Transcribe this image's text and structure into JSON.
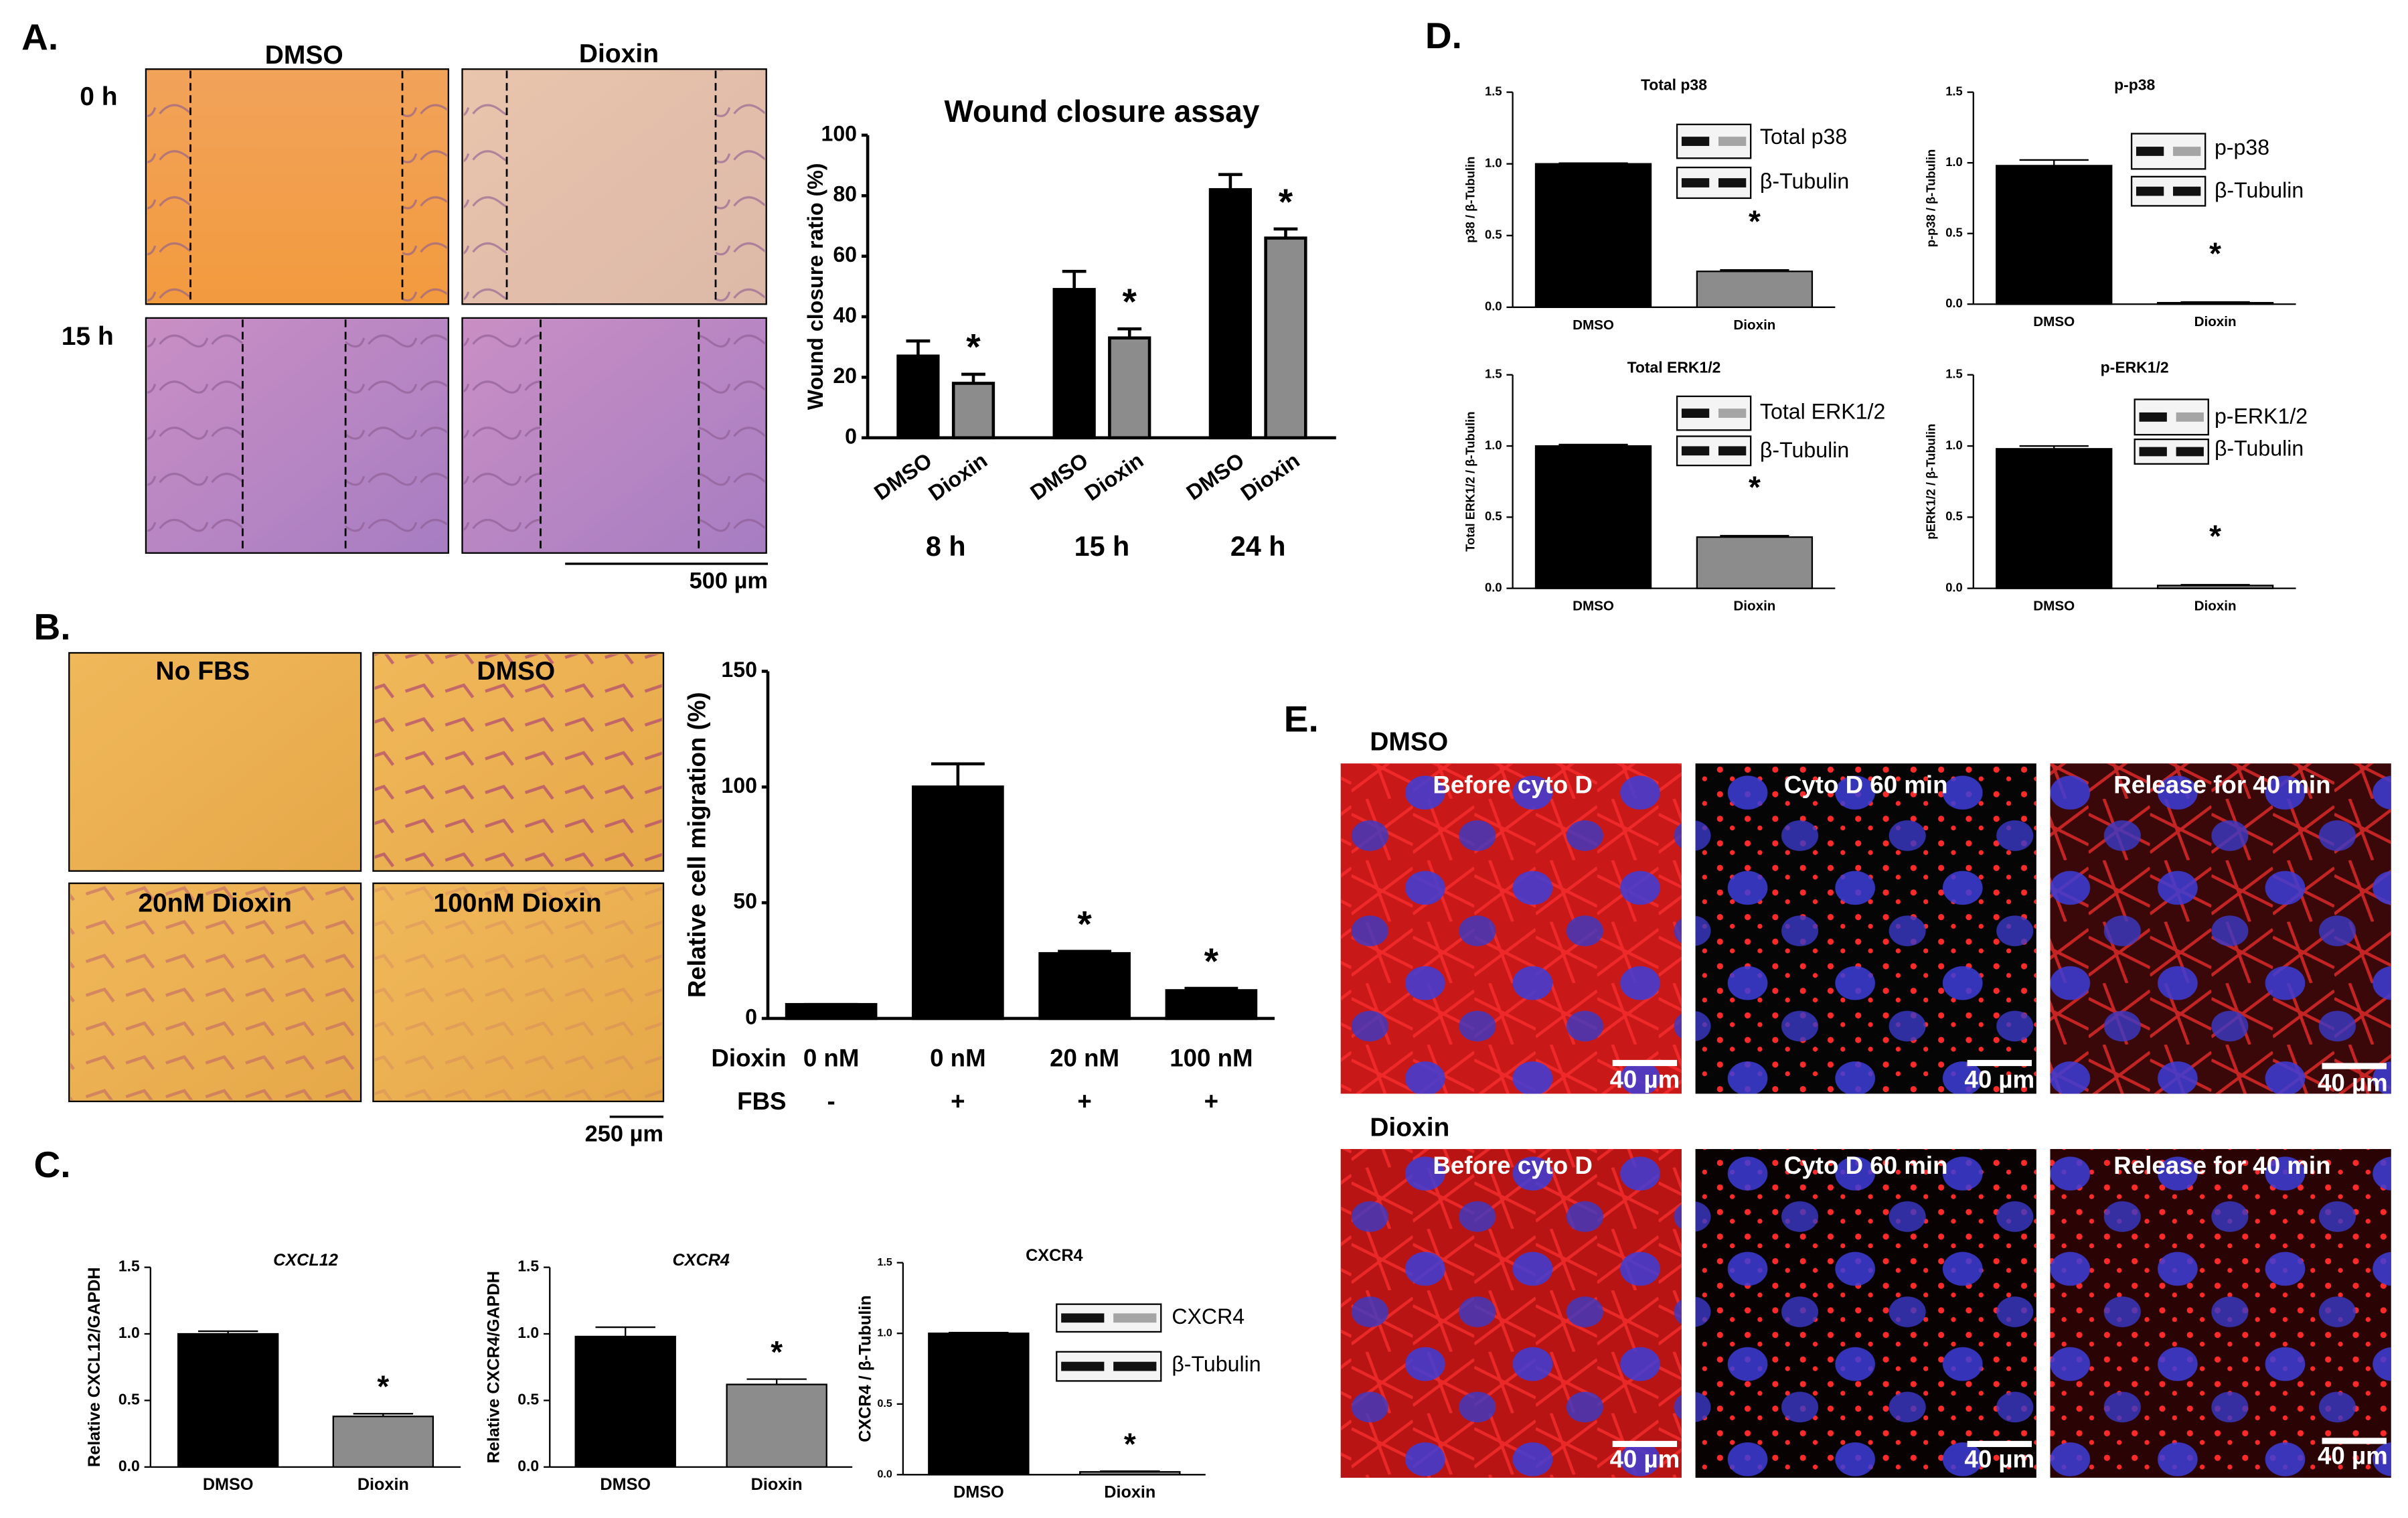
{
  "figure": {
    "panel_labels": [
      "A.",
      "B.",
      "C.",
      "D.",
      "E."
    ],
    "a": {
      "columns": [
        "DMSO",
        "Dioxin"
      ],
      "rows": [
        "0 h",
        "15 h"
      ],
      "scale_bar": "500 µm"
    },
    "b": {
      "images": [
        "No FBS",
        "DMSO",
        "20nM Dioxin",
        "100nM Dioxin"
      ],
      "scale_bar": "250 µm"
    },
    "e": {
      "rows": [
        "DMSO",
        "Dioxin"
      ],
      "columns": [
        "Before cyto D",
        "Cyto D 60 min",
        "Release for 40 min"
      ],
      "scale_bar": "40 µm"
    }
  },
  "chart_data": [
    {
      "type": "bar",
      "title": "Wound closure assay",
      "y_label": "Wound closure ratio (%)",
      "categories": [
        "8 h",
        "15 h",
        "24 h"
      ],
      "series": [
        {
          "name": "DMSO",
          "color": "#000000",
          "values": [
            27,
            49,
            82
          ],
          "errors": [
            5,
            6,
            5
          ],
          "annotations": [
            null,
            null,
            null
          ]
        },
        {
          "name": "Dioxin",
          "color": "#8c8c8c",
          "values": [
            18,
            33,
            66
          ],
          "errors": [
            3,
            3,
            3
          ],
          "annotations": [
            "*",
            "*",
            "*"
          ]
        }
      ],
      "ylim": [
        0,
        100
      ],
      "yticks": [
        0,
        20,
        40,
        60,
        80,
        100
      ]
    },
    {
      "type": "bar",
      "y_label": "Relative cell migration (%)",
      "categories": [
        "0 nM",
        "0 nM",
        "20 nM",
        "100 nM"
      ],
      "row_labels": [
        "Dioxin",
        "FBS"
      ],
      "fbs": [
        "-",
        "+",
        "+",
        "+"
      ],
      "values": [
        6,
        100,
        28,
        12
      ],
      "errors": [
        0,
        10,
        1,
        1
      ],
      "value_annotations": [
        null,
        null,
        "*",
        "*"
      ],
      "colors": [
        "#000000",
        "#000000",
        "#000000",
        "#000000"
      ],
      "ylim": [
        0,
        150
      ],
      "yticks": [
        0,
        50,
        100,
        150
      ]
    },
    {
      "type": "bar",
      "title": "CXCL12",
      "y_label": "Relative CXCL12/GAPDH",
      "categories": [
        "DMSO",
        "Dioxin"
      ],
      "values": [
        1.0,
        0.38
      ],
      "errors": [
        0.02,
        0.02
      ],
      "value_annotations": [
        null,
        "*"
      ],
      "colors": [
        "#000000",
        "#8c8c8c"
      ],
      "ylim": [
        0,
        1.5
      ],
      "yticks": [
        {
          "value": 0,
          "label": "0.0"
        },
        0.5,
        {
          "value": 1,
          "label": "1.0"
        },
        1.5
      ]
    },
    {
      "type": "bar",
      "title": "CXCR4",
      "y_label": "Relative CXCR4/GAPDH",
      "categories": [
        "DMSO",
        "Dioxin"
      ],
      "values": [
        0.98,
        0.62
      ],
      "errors": [
        0.07,
        0.04
      ],
      "value_annotations": [
        null,
        "*"
      ],
      "colors": [
        "#000000",
        "#8c8c8c"
      ],
      "ylim": [
        0,
        1.5
      ],
      "yticks": [
        {
          "value": 0,
          "label": "0.0"
        },
        0.5,
        {
          "value": 1,
          "label": "1.0"
        },
        1.5
      ]
    },
    {
      "type": "bar",
      "title": "CXCR4",
      "y_label": "CXCR4 / β-Tubulin",
      "blot_labels": [
        "CXCR4",
        "β-Tubulin"
      ],
      "categories": [
        "DMSO",
        "Dioxin"
      ],
      "values": [
        1.0,
        0.02
      ],
      "errors": [
        0.005,
        0.005
      ],
      "value_annotations": [
        null,
        "*"
      ],
      "colors": [
        "#000000",
        "#8c8c8c"
      ],
      "ylim": [
        0,
        1.5
      ],
      "yticks": [
        {
          "value": 0,
          "label": "0.0"
        },
        0.5,
        {
          "value": 1,
          "label": "1.0"
        },
        1.5
      ]
    },
    {
      "type": "bar",
      "title": "Total p38",
      "y_label": "p38 / β-Tubulin",
      "blot_labels": [
        "Total p38",
        "β-Tubulin"
      ],
      "categories": [
        "DMSO",
        "Dioxin"
      ],
      "values": [
        1.0,
        0.25
      ],
      "errors": [
        0.005,
        0.01
      ],
      "value_annotations": [
        null,
        "*"
      ],
      "colors": [
        "#000000",
        "#8c8c8c"
      ],
      "ylim": [
        0,
        1.5
      ],
      "yticks": [
        {
          "value": 0,
          "label": "0.0"
        },
        0.5,
        {
          "value": 1,
          "label": "1.0"
        },
        1.5
      ]
    },
    {
      "type": "bar",
      "title": "p-p38",
      "y_label": "p-p38 / β-Tubulin",
      "blot_labels": [
        "p-p38",
        "β-Tubulin"
      ],
      "categories": [
        "DMSO",
        "Dioxin"
      ],
      "values": [
        0.98,
        0.01
      ],
      "errors": [
        0.04,
        0.005
      ],
      "value_annotations": [
        null,
        "*"
      ],
      "colors": [
        "#000000",
        "#8c8c8c"
      ],
      "ylim": [
        0,
        1.5
      ],
      "yticks": [
        {
          "value": 0,
          "label": "0.0"
        },
        0.5,
        {
          "value": 1,
          "label": "1.0"
        },
        1.5
      ]
    },
    {
      "type": "bar",
      "title": "Total ERK1/2",
      "y_label": "Total ERK1/2 / β-Tubulin",
      "blot_labels": [
        "Total ERK1/2",
        "β-Tubulin"
      ],
      "categories": [
        "DMSO",
        "Dioxin"
      ],
      "values": [
        1.0,
        0.36
      ],
      "errors": [
        0.01,
        0.01
      ],
      "value_annotations": [
        null,
        "*"
      ],
      "colors": [
        "#000000",
        "#8c8c8c"
      ],
      "ylim": [
        0,
        1.5
      ],
      "yticks": [
        {
          "value": 0,
          "label": "0.0"
        },
        0.5,
        {
          "value": 1,
          "label": "1.0"
        },
        1.5
      ]
    },
    {
      "type": "bar",
      "title": "p-ERK1/2",
      "y_label": "pERK1/2 / β-Tubulin",
      "blot_labels": [
        "p-ERK1/2",
        "β-Tubulin"
      ],
      "categories": [
        "DMSO",
        "Dioxin"
      ],
      "values": [
        0.98,
        0.02
      ],
      "errors": [
        0.02,
        0.005
      ],
      "value_annotations": [
        null,
        "*"
      ],
      "colors": [
        "#000000",
        "#8c8c8c"
      ],
      "ylim": [
        0,
        1.5
      ],
      "yticks": [
        {
          "value": 0,
          "label": "0.0"
        },
        0.5,
        {
          "value": 1,
          "label": "1.0"
        },
        1.5
      ]
    }
  ]
}
